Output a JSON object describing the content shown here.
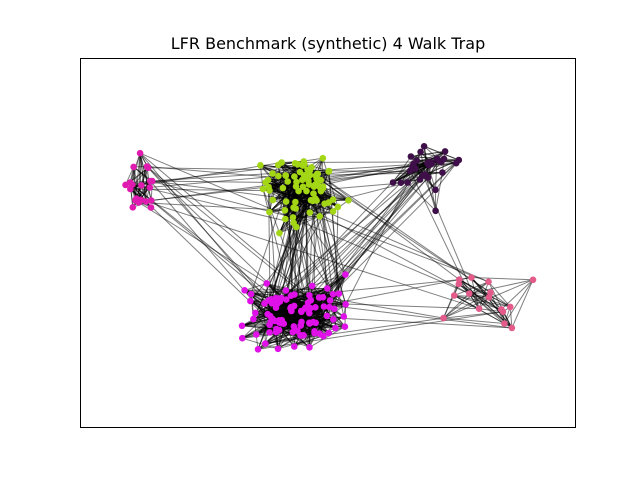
{
  "title": "LFR Benchmark (synthetic) 4 Walk Trap",
  "chart_data": {
    "type": "network",
    "title": "LFR Benchmark (synthetic) 4 Walk Trap",
    "xlabel": "",
    "ylabel": "",
    "axes_ticks": "none",
    "grid": false,
    "communities": [
      {
        "id": "lime",
        "color": "#a3d615",
        "approx_node_count": 80
      },
      {
        "id": "magenta",
        "color": "#e010e8",
        "approx_node_count": 95
      },
      {
        "id": "dark-purple",
        "color": "#3f0f4a",
        "approx_node_count": 30
      },
      {
        "id": "left-pink",
        "color": "#e01cb0",
        "approx_node_count": 20
      },
      {
        "id": "right-pink",
        "color": "#e45a8a",
        "approx_node_count": 16
      }
    ]
  }
}
